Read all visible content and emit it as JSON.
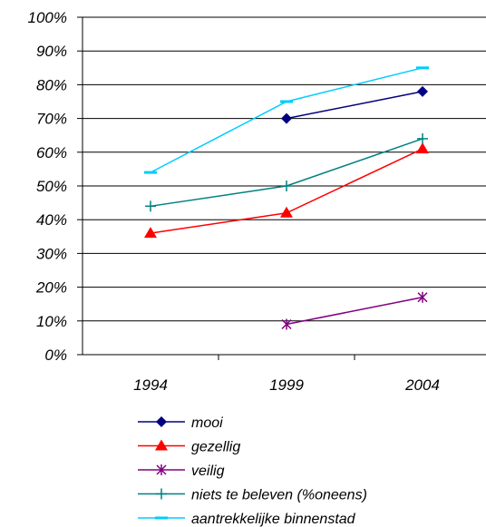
{
  "chart_data": {
    "type": "line",
    "categories": [
      "1994",
      "1999",
      "2004"
    ],
    "y_ticks": [
      "0%",
      "10%",
      "20%",
      "30%",
      "40%",
      "50%",
      "60%",
      "70%",
      "80%",
      "90%",
      "100%"
    ],
    "ylim": [
      0,
      100
    ],
    "y_unit": "%",
    "grid": "horizontal",
    "legend_position": "bottom",
    "series": [
      {
        "name": "mooi",
        "values": [
          null,
          70,
          78
        ],
        "color": "#000080",
        "marker": "diamond"
      },
      {
        "name": "gezellig",
        "values": [
          36,
          42,
          61
        ],
        "color": "#ff0000",
        "marker": "triangle"
      },
      {
        "name": "veilig",
        "values": [
          null,
          9,
          17
        ],
        "color": "#800080",
        "marker": "star"
      },
      {
        "name": "niets te beleven (%oneens)",
        "values": [
          44,
          50,
          64
        ],
        "color": "#008080",
        "marker": "plus"
      },
      {
        "name": "aantrekkelijke binnenstad",
        "values": [
          54,
          75,
          85
        ],
        "color": "#00ccff",
        "marker": "dash"
      }
    ]
  }
}
